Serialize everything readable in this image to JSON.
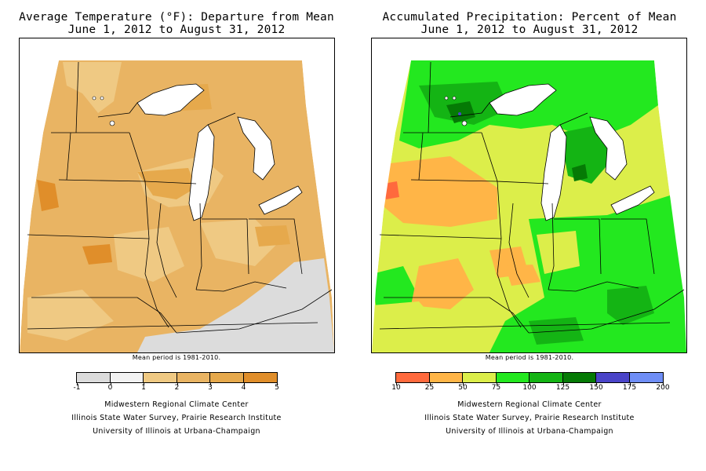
{
  "temperature_map": {
    "title_line1": "Average Temperature (°F): Departure from Mean",
    "title_line2": "June 1, 2012 to August 31, 2012",
    "mean_note": "Mean period is 1981-2010.",
    "legend": {
      "tick_labels": [
        "-1",
        "0",
        "1",
        "2",
        "3",
        "4",
        "5"
      ],
      "bins": [
        {
          "from": -1,
          "to": 0,
          "color": "#dcdcdc"
        },
        {
          "from": 0,
          "to": 1,
          "color": "#f2f2f2"
        },
        {
          "from": 1,
          "to": 2,
          "color": "#efc983"
        },
        {
          "from": 2,
          "to": 3,
          "color": "#e9b463"
        },
        {
          "from": 3,
          "to": 4,
          "color": "#e6a94c"
        },
        {
          "from": 4,
          "to": 5,
          "color": "#e08e2a"
        }
      ]
    },
    "credits": [
      "Midwestern Regional Climate Center",
      "Illinois State Water Survey, Prairie Research Institute",
      "University of Illinois at Urbana-Champaign"
    ]
  },
  "precipitation_map": {
    "title_line1": "Accumulated Precipitation: Percent of Mean",
    "title_line2": "June 1, 2012 to August 31, 2012",
    "mean_note": "Mean period is 1981-2010.",
    "legend": {
      "tick_labels": [
        "10",
        "25",
        "50",
        "75",
        "100",
        "125",
        "150",
        "175",
        "200"
      ],
      "bins": [
        {
          "from": 10,
          "to": 25,
          "color": "#ff6a3d"
        },
        {
          "from": 25,
          "to": 50,
          "color": "#ffb547"
        },
        {
          "from": 50,
          "to": 75,
          "color": "#dcee4a"
        },
        {
          "from": 75,
          "to": 100,
          "color": "#23e81f"
        },
        {
          "from": 100,
          "to": 125,
          "color": "#14b414"
        },
        {
          "from": 125,
          "to": 150,
          "color": "#057a05"
        },
        {
          "from": 150,
          "to": 175,
          "color": "#4a44c8"
        },
        {
          "from": 175,
          "to": 200,
          "color": "#6f8ef6"
        }
      ]
    },
    "credits": [
      "Midwestern Regional Climate Center",
      "Illinois State Water Survey, Prairie Research Institute",
      "University of Illinois at Urbana-Champaign"
    ]
  },
  "colors": {
    "lake": "#ffffff",
    "border": "#000000"
  }
}
